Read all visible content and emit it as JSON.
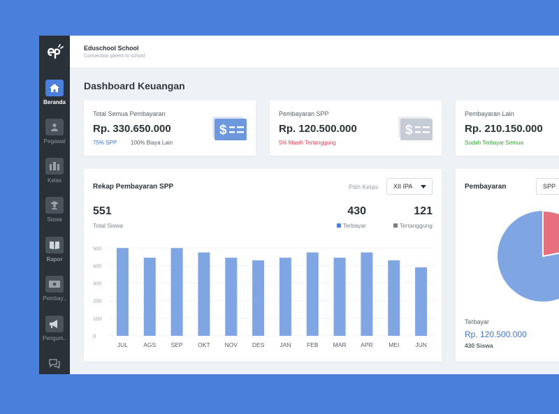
{
  "colors": {
    "accent": "#4a80dc",
    "bar": "#7fa6e3",
    "paid": "#4a80dc",
    "unpaid": "#777f87",
    "danger": "#e53950",
    "success": "#2fa52e",
    "pie_paid": "#7fa6e3",
    "pie_unpaid": "#e6707e"
  },
  "sidebar": {
    "logo_icon": "eduschool-logo",
    "items": [
      {
        "label": "Beranda",
        "icon": "home-icon",
        "active": true
      },
      {
        "label": "Pegawai",
        "icon": "employee-icon"
      },
      {
        "label": "Kelas",
        "icon": "classroom-icon"
      },
      {
        "label": "Siswa",
        "icon": "student-icon"
      },
      {
        "label": "Rapor",
        "icon": "book-icon"
      },
      {
        "label": "Pembay..",
        "icon": "money-icon"
      },
      {
        "label": "Pengum..",
        "icon": "megaphone-icon"
      },
      {
        "label": "",
        "icon": "chat-icon"
      }
    ]
  },
  "header": {
    "school_name": "Eduschool School",
    "tagline": "Connection parent to school"
  },
  "page": {
    "title": "Dashboard Keuangan"
  },
  "stats": [
    {
      "label": "Total Semua Pembayaran",
      "value": "Rp. 330.650.000",
      "sub1": "75% SPP",
      "sub2": "100% Biaya Lain"
    },
    {
      "label": "Pembayaran SPP",
      "value": "Rp. 120.500.000",
      "sub1": "5% Masih Tertanggung"
    },
    {
      "label": "Pembayaran Lain",
      "value": "Rp. 210.150.000",
      "sub1": "Sudah Terbayar Semua"
    }
  ],
  "rekap": {
    "title": "Rekap Pembayaran SPP",
    "filter_label": "Pilih Kelas",
    "filter_value": "XII IPA",
    "total": {
      "value": "551",
      "label": "Total Siswa"
    },
    "paid": {
      "value": "430",
      "label": "Terbayar"
    },
    "unpaid": {
      "value": "121",
      "label": "Tertanggung"
    }
  },
  "chart_data": {
    "type": "bar",
    "categories": [
      "JUL",
      "AGS",
      "SEP",
      "OKT",
      "NOV",
      "DES",
      "JAN",
      "FEB",
      "MAR",
      "APR",
      "MEI",
      "JUN"
    ],
    "values": [
      500,
      445,
      500,
      475,
      445,
      430,
      445,
      475,
      445,
      475,
      430,
      390
    ],
    "yticks": [
      "500",
      "400",
      "300",
      "200",
      "100",
      "0"
    ],
    "ylim": [
      0,
      525
    ],
    "grid": true
  },
  "pie": {
    "title": "Pembayaran",
    "select_value": "SPP",
    "caption": "Terbayar",
    "amount": "Rp. 120.500.000",
    "count": "430 Siswa",
    "chart_data": {
      "type": "pie",
      "labels": [
        "Terbayar",
        "Tertanggung"
      ],
      "values": [
        430,
        121
      ]
    }
  }
}
